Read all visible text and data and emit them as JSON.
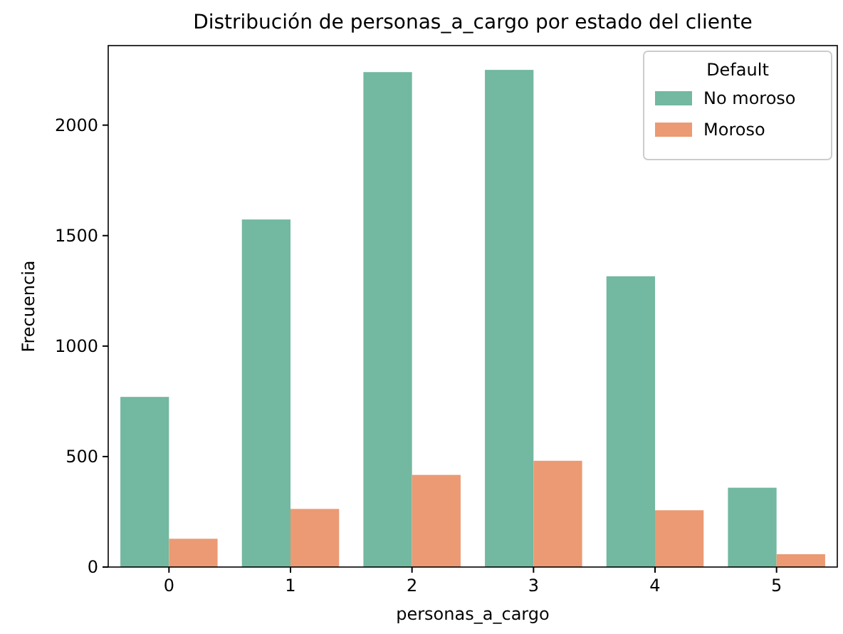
{
  "chart_data": {
    "type": "bar",
    "title": "Distribución de personas_a_cargo por estado del cliente",
    "xlabel": "personas_a_cargo",
    "ylabel": "Frecuencia",
    "legend_title": "Default",
    "legend": "top right",
    "categories": [
      "0",
      "1",
      "2",
      "3",
      "4",
      "5"
    ],
    "ylim": [
      0,
      2360
    ],
    "yticks": [
      0,
      500,
      1000,
      1500,
      2000
    ],
    "series": [
      {
        "name": "No moroso",
        "color": "#73b8a0",
        "values": [
          770,
          1573,
          2240,
          2250,
          1316,
          359
        ]
      },
      {
        "name": "Moroso",
        "color": "#eb9a74",
        "values": [
          128,
          263,
          417,
          481,
          257,
          58
        ]
      }
    ]
  }
}
